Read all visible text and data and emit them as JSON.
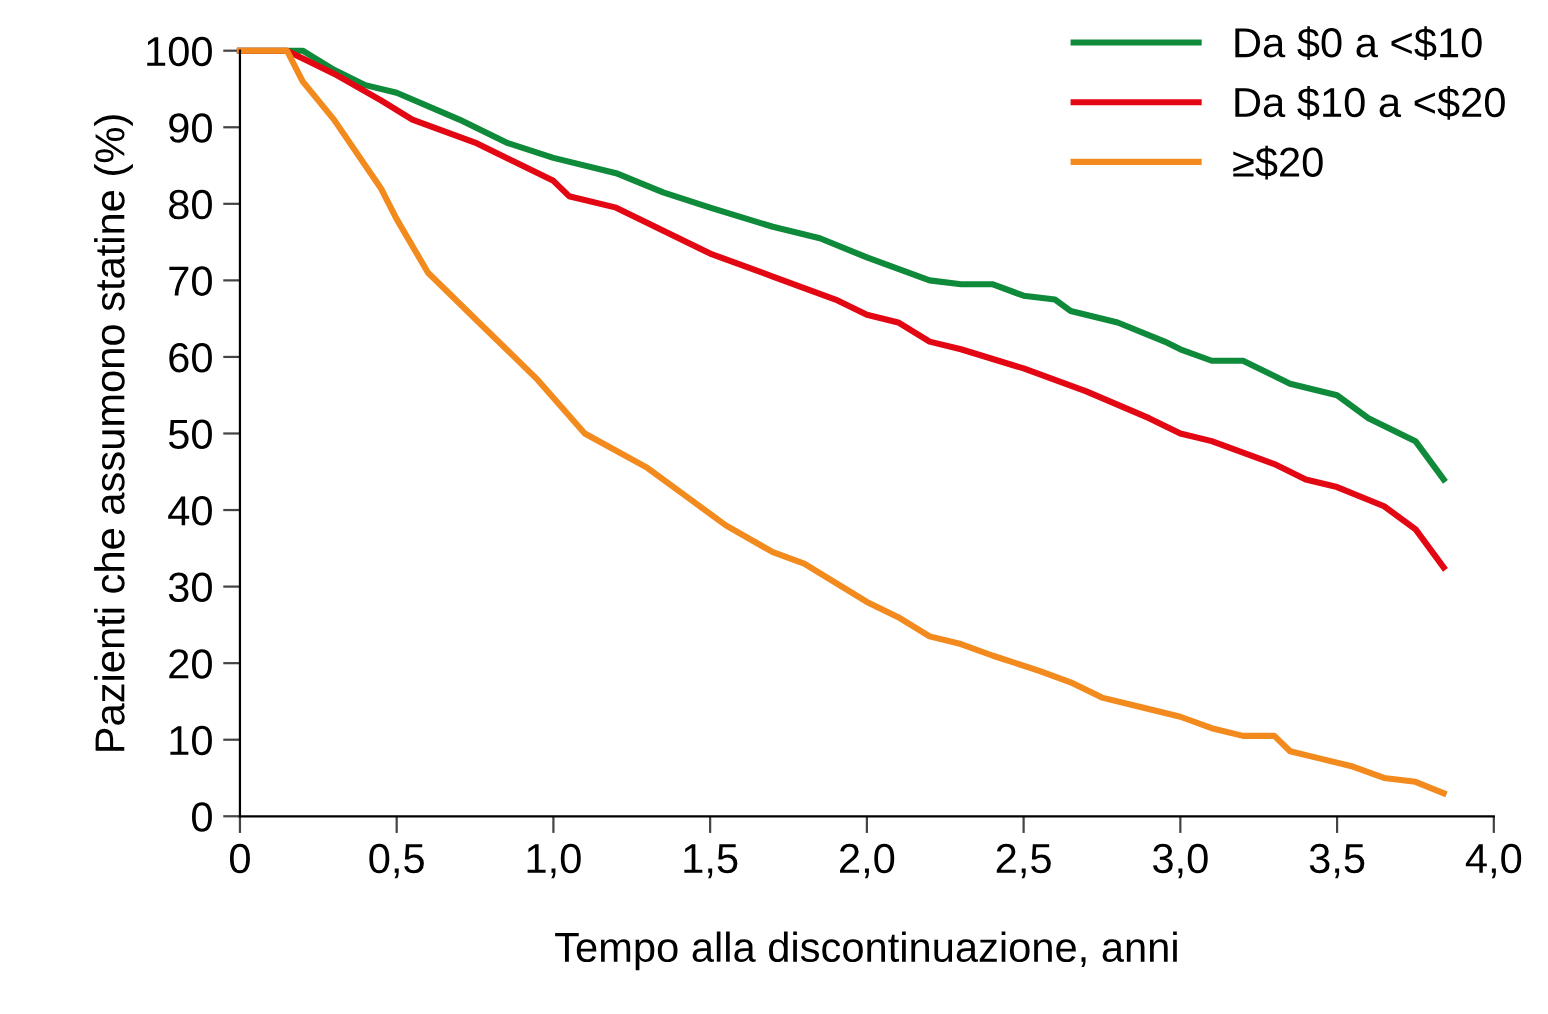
{
  "chart_data": {
    "type": "line",
    "xlabel": "Tempo alla discontinuazione, anni",
    "ylabel": "Pazienti che assumono statine (%)",
    "xlim": [
      0,
      4.0
    ],
    "xticks": [
      {
        "value": 0,
        "label": "0"
      },
      {
        "value": 0.5,
        "label": "0,5"
      },
      {
        "value": 1.0,
        "label": "1,0"
      },
      {
        "value": 1.5,
        "label": "1,5"
      },
      {
        "value": 2.0,
        "label": "2,0"
      },
      {
        "value": 2.5,
        "label": "2,5"
      },
      {
        "value": 3.0,
        "label": "3,0"
      },
      {
        "value": 3.5,
        "label": "3,5"
      },
      {
        "value": 4.0,
        "label": "4,0"
      }
    ],
    "ylim": [
      0,
      100
    ],
    "yticks": [
      0,
      10,
      20,
      30,
      40,
      50,
      60,
      70,
      80,
      90,
      100
    ],
    "grid": false,
    "legend": "top right",
    "marker": "none",
    "line_style": "solid",
    "series": [
      {
        "name": "Da $0 a <$10",
        "color": "#0e8a3a",
        "x": [
          0,
          0.2,
          0.3,
          0.4,
          0.5,
          0.7,
          0.85,
          1.0,
          1.2,
          1.35,
          1.5,
          1.7,
          1.85,
          2.0,
          2.1,
          2.2,
          2.3,
          2.4,
          2.5,
          2.6,
          2.65,
          2.8,
          2.95,
          3.0,
          3.1,
          3.2,
          3.35,
          3.5,
          3.6,
          3.75,
          3.84
        ],
        "values": [
          100,
          100,
          97.5,
          95.5,
          94.5,
          91,
          88,
          86,
          84,
          81.5,
          79.5,
          77,
          75.5,
          73,
          71.5,
          70,
          69.5,
          69.5,
          68,
          67.5,
          66,
          64.5,
          62,
          61,
          59.5,
          59.5,
          56.5,
          55,
          52,
          49,
          44
        ]
      },
      {
        "name": "Da $10 a <$20",
        "color": "#e30613",
        "x": [
          0,
          0.15,
          0.3,
          0.45,
          0.55,
          0.75,
          1.0,
          1.05,
          1.2,
          1.3,
          1.5,
          1.7,
          1.9,
          2.0,
          2.1,
          2.2,
          2.3,
          2.5,
          2.7,
          2.9,
          3.0,
          3.1,
          3.3,
          3.4,
          3.5,
          3.65,
          3.75,
          3.84
        ],
        "values": [
          100,
          100,
          97,
          93.5,
          91,
          88,
          83,
          81,
          79.5,
          77.5,
          73.5,
          70.5,
          67.5,
          65.5,
          64.5,
          62,
          61,
          58.5,
          55.5,
          52,
          50,
          49,
          46,
          44,
          43,
          40.5,
          37.5,
          32.5
        ]
      },
      {
        "name": "≥$20",
        "color": "#f28a1e",
        "x": [
          0,
          0.15,
          0.2,
          0.3,
          0.45,
          0.5,
          0.6,
          0.8,
          0.95,
          1.1,
          1.3,
          1.45,
          1.55,
          1.7,
          1.8,
          2.0,
          2.1,
          2.2,
          2.3,
          2.4,
          2.55,
          2.65,
          2.75,
          2.85,
          3.0,
          3.1,
          3.2,
          3.3,
          3.35,
          3.45,
          3.55,
          3.65,
          3.75,
          3.84
        ],
        "values": [
          100,
          100,
          96,
          91,
          82,
          78,
          71,
          63,
          57,
          50,
          45.5,
          41,
          38,
          34.5,
          33,
          28,
          26,
          23.5,
          22.5,
          21,
          19,
          17.5,
          15.5,
          14.5,
          13,
          11.5,
          10.5,
          10.5,
          8.5,
          7.5,
          6.5,
          5,
          4.5,
          3
        ]
      }
    ]
  }
}
